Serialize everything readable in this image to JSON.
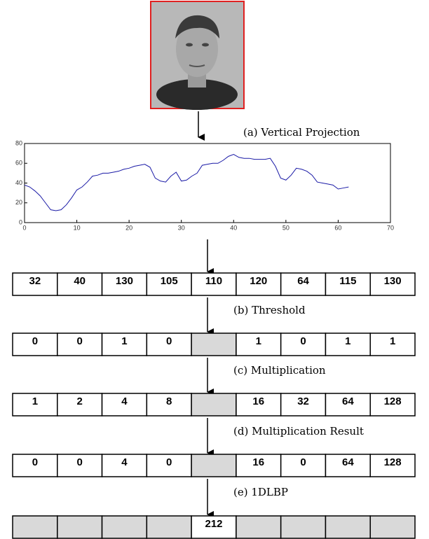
{
  "captions": [
    "(a) Vertical Projection",
    "(b) Threshold",
    "(c) Multiplication",
    "(d) Multiplication Result",
    "(e) 1DLBP"
  ],
  "chart_data": {
    "type": "line",
    "x": [
      0,
      1,
      2,
      3,
      4,
      5,
      6,
      7,
      8,
      9,
      10,
      11,
      12,
      13,
      14,
      15,
      16,
      17,
      18,
      19,
      20,
      21,
      22,
      23,
      24,
      25,
      26,
      27,
      28,
      29,
      30,
      31,
      32,
      33,
      34,
      35,
      36,
      37,
      38,
      39,
      40,
      41,
      42,
      43,
      44,
      45,
      46,
      47,
      48,
      49,
      50,
      51,
      52,
      53,
      54,
      55,
      56,
      57,
      58,
      59,
      60,
      61,
      62
    ],
    "values": [
      38,
      36,
      32,
      27,
      20,
      13,
      12,
      13,
      18,
      25,
      33,
      36,
      41,
      47,
      48,
      50,
      50,
      51,
      52,
      54,
      55,
      57,
      58,
      59,
      56,
      45,
      42,
      41,
      47,
      51,
      42,
      43,
      47,
      50,
      58,
      59,
      60,
      60,
      63,
      67,
      69,
      66,
      65,
      65,
      64,
      64,
      64,
      65,
      57,
      45,
      43,
      48,
      55,
      54,
      52,
      48,
      41,
      40,
      39,
      38,
      34,
      35,
      36
    ],
    "color": "#1a1aa6",
    "xlim": [
      0,
      70
    ],
    "ylim": [
      0,
      80
    ],
    "xticks": [
      0,
      10,
      20,
      30,
      40,
      50,
      60,
      70
    ],
    "yticks": [
      0,
      20,
      40,
      60,
      80
    ]
  },
  "rows": [
    [
      32,
      40,
      130,
      105,
      110,
      120,
      64,
      115,
      130
    ],
    [
      0,
      0,
      1,
      0,
      null,
      1,
      0,
      1,
      1
    ],
    [
      1,
      2,
      4,
      8,
      null,
      16,
      32,
      64,
      128
    ],
    [
      0,
      0,
      4,
      0,
      null,
      16,
      0,
      64,
      128
    ],
    [
      null,
      null,
      null,
      null,
      212,
      null,
      null,
      null,
      null
    ]
  ]
}
